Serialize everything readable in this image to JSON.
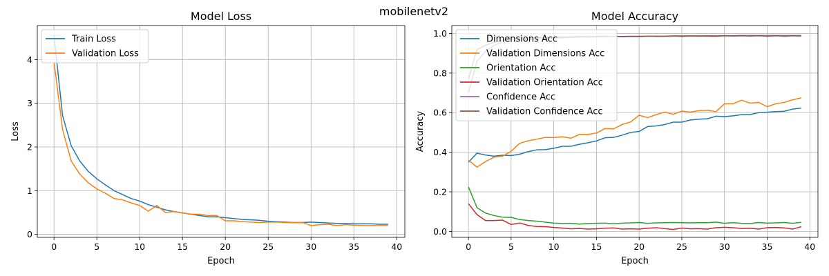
{
  "suptitle": "mobilenetv2",
  "chart_data": [
    {
      "type": "line",
      "title": "Model Loss",
      "xlabel": "Epoch",
      "ylabel": "Loss",
      "xlim": [
        -1.95,
        40.95
      ],
      "ylim": [
        -0.07,
        4.78
      ],
      "xticks": [
        0,
        5,
        10,
        15,
        20,
        25,
        30,
        35,
        40
      ],
      "yticks": [
        0,
        1,
        2,
        3,
        4
      ],
      "grid": true,
      "legend": "upper-left",
      "series": [
        {
          "name": "Train Loss",
          "color": "#1f77b4",
          "values": [
            4.55,
            2.72,
            2.03,
            1.68,
            1.44,
            1.27,
            1.13,
            1.0,
            0.91,
            0.82,
            0.76,
            0.68,
            0.62,
            0.56,
            0.52,
            0.49,
            0.46,
            0.43,
            0.4,
            0.4,
            0.38,
            0.36,
            0.34,
            0.33,
            0.32,
            0.3,
            0.29,
            0.28,
            0.27,
            0.27,
            0.28,
            0.27,
            0.26,
            0.25,
            0.25,
            0.24,
            0.24,
            0.24,
            0.23,
            0.23
          ]
        },
        {
          "name": "Validation Loss",
          "color": "#ff7f0e",
          "values": [
            3.95,
            2.4,
            1.68,
            1.38,
            1.18,
            1.04,
            0.94,
            0.82,
            0.79,
            0.72,
            0.66,
            0.53,
            0.66,
            0.5,
            0.52,
            0.49,
            0.46,
            0.46,
            0.43,
            0.43,
            0.31,
            0.31,
            0.29,
            0.28,
            0.27,
            0.28,
            0.28,
            0.27,
            0.27,
            0.27,
            0.2,
            0.22,
            0.23,
            0.2,
            0.22,
            0.21,
            0.2,
            0.2,
            0.2,
            0.2
          ]
        }
      ]
    },
    {
      "type": "line",
      "title": "Model Accuracy",
      "xlabel": "Epoch",
      "ylabel": "Accuracy",
      "xlim": [
        -1.95,
        40.95
      ],
      "ylim": [
        -0.03,
        1.04
      ],
      "xticks": [
        0,
        5,
        10,
        15,
        20,
        25,
        30,
        35,
        40
      ],
      "yticks": [
        0.0,
        0.2,
        0.4,
        0.6,
        0.8,
        1.0
      ],
      "grid": true,
      "legend": "upper-left",
      "series": [
        {
          "name": "Dimensions Acc",
          "color": "#1f77b4",
          "values": [
            0.35,
            0.395,
            0.386,
            0.38,
            0.385,
            0.383,
            0.39,
            0.403,
            0.412,
            0.413,
            0.42,
            0.43,
            0.43,
            0.44,
            0.448,
            0.457,
            0.473,
            0.475,
            0.486,
            0.5,
            0.505,
            0.53,
            0.533,
            0.54,
            0.552,
            0.552,
            0.563,
            0.567,
            0.569,
            0.582,
            0.58,
            0.584,
            0.59,
            0.59,
            0.6,
            0.602,
            0.605,
            0.607,
            0.618,
            0.623
          ]
        },
        {
          "name": "Validation Dimensions Acc",
          "color": "#ff7f0e",
          "values": [
            0.36,
            0.325,
            0.353,
            0.375,
            0.38,
            0.405,
            0.445,
            0.458,
            0.466,
            0.475,
            0.474,
            0.478,
            0.471,
            0.49,
            0.49,
            0.497,
            0.52,
            0.518,
            0.54,
            0.553,
            0.587,
            0.575,
            0.59,
            0.603,
            0.592,
            0.608,
            0.603,
            0.61,
            0.612,
            0.605,
            0.645,
            0.645,
            0.663,
            0.648,
            0.652,
            0.63,
            0.645,
            0.652,
            0.665,
            0.675
          ]
        },
        {
          "name": "Orientation Acc",
          "color": "#2ca02c",
          "values": [
            0.225,
            0.12,
            0.093,
            0.08,
            0.072,
            0.071,
            0.06,
            0.055,
            0.052,
            0.047,
            0.042,
            0.04,
            0.041,
            0.037,
            0.04,
            0.041,
            0.042,
            0.039,
            0.042,
            0.043,
            0.045,
            0.041,
            0.043,
            0.044,
            0.045,
            0.044,
            0.043,
            0.044,
            0.044,
            0.047,
            0.041,
            0.044,
            0.041,
            0.04,
            0.045,
            0.042,
            0.043,
            0.045,
            0.041,
            0.046
          ]
        },
        {
          "name": "Validation Orientation Acc",
          "color": "#d62728",
          "values": [
            0.14,
            0.085,
            0.055,
            0.055,
            0.057,
            0.035,
            0.043,
            0.03,
            0.025,
            0.024,
            0.02,
            0.017,
            0.013,
            0.015,
            0.012,
            0.013,
            0.016,
            0.018,
            0.012,
            0.013,
            0.012,
            0.016,
            0.019,
            0.014,
            0.01,
            0.017,
            0.013,
            0.014,
            0.012,
            0.019,
            0.021,
            0.019,
            0.015,
            0.016,
            0.012,
            0.019,
            0.02,
            0.018,
            0.012,
            0.024
          ]
        },
        {
          "name": "Confidence Acc",
          "color": "#9467bd",
          "values": [
            0.7,
            0.86,
            0.91,
            0.94,
            0.955,
            0.96,
            0.965,
            0.97,
            0.972,
            0.975,
            0.977,
            0.978,
            0.98,
            0.982,
            0.982,
            0.983,
            0.984,
            0.985,
            0.985,
            0.986,
            0.986,
            0.987,
            0.987,
            0.987,
            0.988,
            0.988,
            0.988,
            0.988,
            0.989,
            0.989,
            0.989,
            0.989,
            0.99,
            0.99,
            0.99,
            0.99,
            0.99,
            0.99,
            0.99,
            0.99
          ]
        },
        {
          "name": "Validation Confidence Acc",
          "color": "#8c564b",
          "values": [
            0.77,
            0.92,
            0.94,
            0.955,
            0.965,
            0.97,
            0.975,
            0.978,
            0.978,
            0.98,
            0.982,
            0.982,
            0.983,
            0.985,
            0.984,
            0.985,
            0.986,
            0.985,
            0.983,
            0.984,
            0.984,
            0.986,
            0.985,
            0.985,
            0.987,
            0.985,
            0.987,
            0.986,
            0.986,
            0.985,
            0.988,
            0.987,
            0.988,
            0.987,
            0.988,
            0.986,
            0.988,
            0.986,
            0.988,
            0.987
          ]
        }
      ]
    }
  ]
}
